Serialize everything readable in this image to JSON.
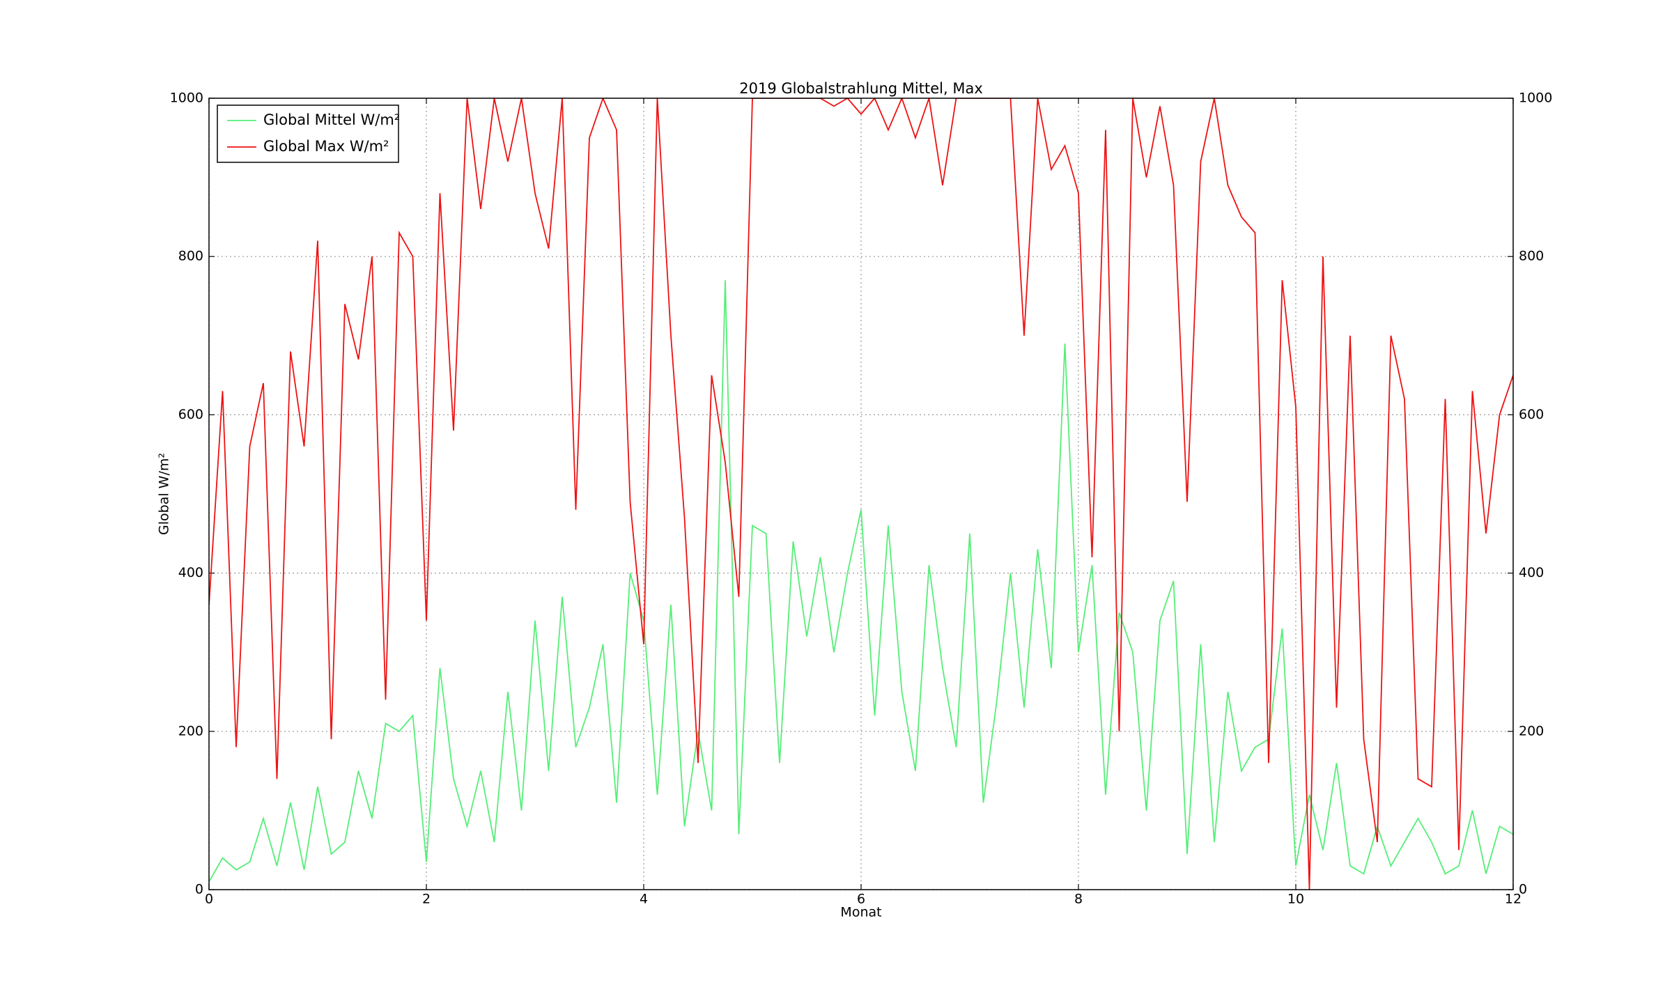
{
  "chart_data": {
    "type": "line",
    "title": "2019 Globalstrahlung Mittel, Max",
    "xlabel": "Monat",
    "ylabel": "Global W/m²",
    "x": [
      0,
      0.125,
      0.25,
      0.375,
      0.5,
      0.625,
      0.75,
      0.875,
      1,
      1.125,
      1.25,
      1.375,
      1.5,
      1.625,
      1.75,
      1.875,
      2,
      2.125,
      2.25,
      2.375,
      2.5,
      2.625,
      2.75,
      2.875,
      3,
      3.125,
      3.25,
      3.375,
      3.5,
      3.625,
      3.75,
      3.875,
      4,
      4.125,
      4.25,
      4.375,
      4.5,
      4.625,
      4.75,
      4.875,
      5,
      5.125,
      5.25,
      5.375,
      5.5,
      5.625,
      5.75,
      5.875,
      6,
      6.125,
      6.25,
      6.375,
      6.5,
      6.625,
      6.75,
      6.875,
      7,
      7.125,
      7.25,
      7.375,
      7.5,
      7.625,
      7.75,
      7.875,
      8,
      8.125,
      8.25,
      8.375,
      8.5,
      8.625,
      8.75,
      8.875,
      9,
      9.125,
      9.25,
      9.375,
      9.5,
      9.625,
      9.75,
      9.875,
      10,
      10.125,
      10.25,
      10.375,
      10.5,
      10.625,
      10.75,
      10.875,
      11,
      11.125,
      11.25,
      11.375,
      11.5,
      11.625,
      11.75,
      11.875,
      12
    ],
    "series": [
      {
        "name": "Global Mittel W/m²",
        "color": "#55ee77",
        "values": [
          10,
          40,
          25,
          35,
          90,
          30,
          110,
          25,
          130,
          45,
          60,
          150,
          90,
          210,
          200,
          220,
          35,
          280,
          140,
          80,
          150,
          60,
          250,
          100,
          340,
          150,
          370,
          180,
          230,
          310,
          110,
          400,
          340,
          120,
          360,
          80,
          200,
          100,
          770,
          70,
          460,
          450,
          160,
          440,
          320,
          420,
          300,
          400,
          480,
          220,
          460,
          250,
          150,
          410,
          280,
          180,
          450,
          110,
          240,
          400,
          230,
          430,
          280,
          690,
          300,
          410,
          120,
          350,
          300,
          100,
          340,
          390,
          45,
          310,
          60,
          250,
          150,
          180,
          190,
          330,
          30,
          120,
          50,
          160,
          30,
          20,
          80,
          30,
          60,
          90,
          60,
          20,
          30,
          100,
          20,
          80,
          70
        ]
      },
      {
        "name": "Global Max W/m²",
        "color": "#ee1111",
        "values": [
          360,
          630,
          180,
          560,
          640,
          140,
          680,
          560,
          820,
          190,
          740,
          670,
          800,
          240,
          830,
          800,
          340,
          880,
          580,
          1000,
          860,
          1000,
          920,
          1000,
          880,
          810,
          1000,
          480,
          950,
          1000,
          960,
          490,
          310,
          1000,
          700,
          470,
          160,
          650,
          540,
          370,
          1000,
          1000,
          1000,
          1000,
          1000,
          1000,
          990,
          1000,
          980,
          1000,
          960,
          1000,
          950,
          1000,
          890,
          1000,
          1000,
          1000,
          1000,
          1000,
          700,
          1000,
          910,
          940,
          880,
          420,
          960,
          200,
          1000,
          900,
          990,
          890,
          490,
          920,
          1000,
          890,
          850,
          830,
          160,
          770,
          610,
          0,
          800,
          230,
          700,
          190,
          60,
          700,
          620,
          140,
          130,
          620,
          50,
          630,
          450,
          600,
          650
        ]
      }
    ],
    "xlim": [
      0,
      12
    ],
    "xticks": [
      0,
      2,
      4,
      6,
      8,
      10,
      12
    ],
    "ylim": [
      0,
      1000
    ],
    "yticks": [
      0,
      200,
      400,
      600,
      800,
      1000
    ],
    "y2lim": [
      0,
      1000
    ],
    "y2ticks": [
      0,
      200,
      400,
      600,
      800,
      1000
    ],
    "grid": true,
    "legend": "upper left"
  }
}
